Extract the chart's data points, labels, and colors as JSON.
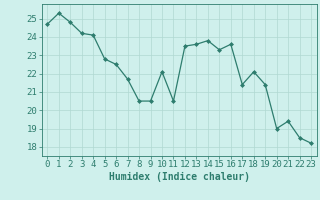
{
  "x": [
    0,
    1,
    2,
    3,
    4,
    5,
    6,
    7,
    8,
    9,
    10,
    11,
    12,
    13,
    14,
    15,
    16,
    17,
    18,
    19,
    20,
    21,
    22,
    23
  ],
  "y": [
    24.7,
    25.3,
    24.8,
    24.2,
    24.1,
    22.8,
    22.5,
    21.7,
    20.5,
    20.5,
    22.1,
    20.5,
    23.5,
    23.6,
    23.8,
    23.3,
    23.6,
    21.4,
    22.1,
    21.4,
    19.0,
    19.4,
    18.5,
    18.2
  ],
  "line_color": "#2e7d6e",
  "marker": "D",
  "marker_size": 2,
  "bg_color": "#cff0ec",
  "grid_color": "#b0d8d2",
  "xlabel": "Humidex (Indice chaleur)",
  "ylim": [
    17.5,
    25.8
  ],
  "xlim": [
    -0.5,
    23.5
  ],
  "yticks": [
    18,
    19,
    20,
    21,
    22,
    23,
    24,
    25
  ],
  "xticks": [
    0,
    1,
    2,
    3,
    4,
    5,
    6,
    7,
    8,
    9,
    10,
    11,
    12,
    13,
    14,
    15,
    16,
    17,
    18,
    19,
    20,
    21,
    22,
    23
  ],
  "xlabel_fontsize": 7,
  "tick_fontsize": 6.5
}
